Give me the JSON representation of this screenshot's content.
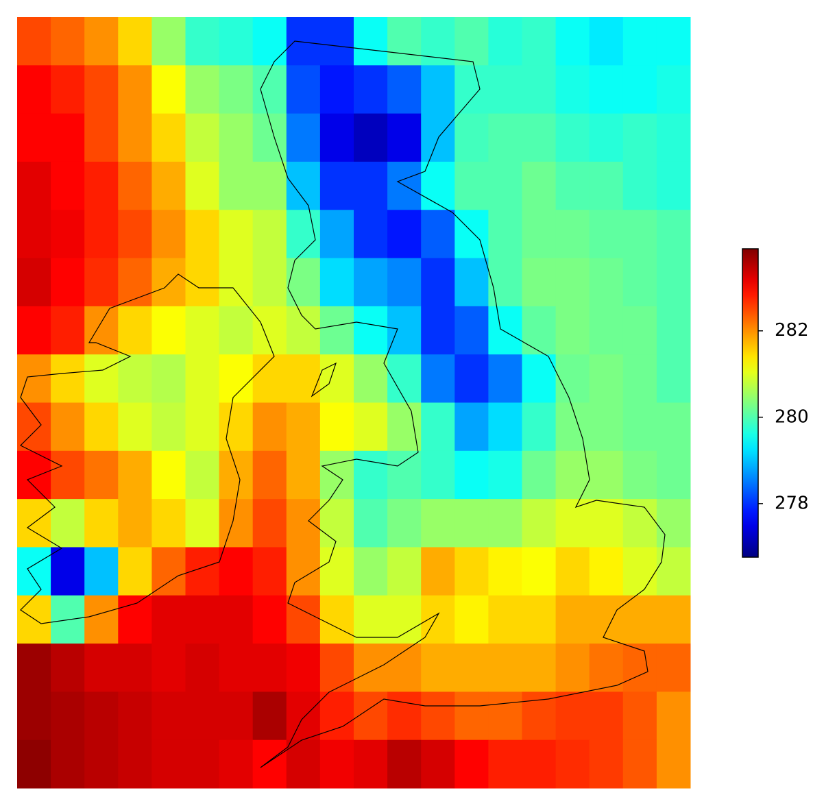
{
  "chart_data": {
    "type": "heatmap",
    "cmap": "jet",
    "clim": [
      276.76,
      283.9
    ],
    "cticks": [
      278,
      280,
      282
    ],
    "z": [
      [
        282.5,
        282.3,
        282,
        281.5,
        280.5,
        279.8,
        279.7,
        279.5,
        278,
        278,
        279.5,
        280,
        279.8,
        280,
        279.7,
        279.8,
        279.5,
        279.3,
        279.5,
        279.5
      ],
      [
        283,
        282.8,
        282.5,
        282,
        281.2,
        280.5,
        280.3,
        280,
        278.2,
        277.8,
        278,
        278.3,
        279,
        279.8,
        279.8,
        279.8,
        279.6,
        279.5,
        279.5,
        279.6
      ],
      [
        283,
        283,
        282.5,
        282,
        281.5,
        280.8,
        280.5,
        280.2,
        278.5,
        277.5,
        277.2,
        277.5,
        279,
        279.9,
        280,
        280,
        279.8,
        279.7,
        279.8,
        279.7
      ],
      [
        283.2,
        283,
        282.8,
        282.3,
        281.8,
        281,
        280.5,
        280.5,
        279,
        278,
        278,
        278.5,
        279.5,
        280,
        280,
        280.2,
        280,
        280,
        279.8,
        279.7
      ],
      [
        283.2,
        283.1,
        282.8,
        282.5,
        282,
        281.5,
        281,
        280.8,
        279.8,
        278.8,
        278,
        277.8,
        278.3,
        279.5,
        280,
        280.2,
        280.2,
        280.1,
        280.1,
        280
      ],
      [
        283.3,
        283,
        282.7,
        282.3,
        281.8,
        281.5,
        281,
        280.8,
        280.3,
        279.2,
        278.8,
        278.6,
        278,
        279,
        280,
        280.3,
        280.3,
        280.2,
        280.1,
        280
      ],
      [
        283,
        282.8,
        282,
        281.5,
        281.2,
        281,
        280.8,
        281,
        280.8,
        280.2,
        279.5,
        279,
        278,
        278.3,
        279.5,
        280.1,
        280.3,
        280.2,
        280.2,
        280
      ],
      [
        282,
        281.5,
        281,
        280.8,
        280.7,
        281,
        281.2,
        281.5,
        281.5,
        281,
        280.5,
        279.8,
        278.5,
        278,
        278.5,
        279.5,
        280.2,
        280.3,
        280.2,
        280
      ],
      [
        282.5,
        282,
        281.5,
        281,
        280.8,
        281,
        281.5,
        282,
        281.8,
        281.2,
        281,
        280.5,
        279.8,
        278.8,
        279.2,
        279.8,
        280.3,
        280.3,
        280.2,
        280.2
      ],
      [
        283,
        282.5,
        282.2,
        281.8,
        281.2,
        280.8,
        281.8,
        282.3,
        281.8,
        280.5,
        279.8,
        280,
        279.8,
        279.5,
        279.6,
        280.2,
        280.5,
        280.5,
        280.3,
        280.2
      ],
      [
        281.5,
        280.8,
        281.5,
        281.8,
        281.5,
        281,
        282,
        282.5,
        282,
        280.8,
        280,
        280.3,
        280.5,
        280.5,
        280.5,
        280.8,
        281,
        281,
        280.8,
        280.5
      ],
      [
        279.5,
        277.5,
        279,
        281.5,
        282.3,
        282.8,
        283,
        282.8,
        282,
        281,
        280.5,
        280.8,
        281.8,
        281.5,
        281.3,
        281.2,
        281.5,
        281.3,
        281,
        280.8
      ],
      [
        281.5,
        280,
        282,
        283,
        283.2,
        283.2,
        283.2,
        283,
        282.5,
        281.5,
        281,
        281,
        281.5,
        281.3,
        281.5,
        281.5,
        281.8,
        281.8,
        281.8,
        281.8
      ],
      [
        283.7,
        283.5,
        283.3,
        283.3,
        283.2,
        283.3,
        283.2,
        283.2,
        283.1,
        282.5,
        282,
        282,
        281.8,
        281.8,
        281.8,
        281.8,
        282,
        282.2,
        282.3,
        282.3
      ],
      [
        283.7,
        283.6,
        283.5,
        283.4,
        283.3,
        283.3,
        283.3,
        283.6,
        283.2,
        282.8,
        282.5,
        282.7,
        282.5,
        282.3,
        282.3,
        282.5,
        282.6,
        282.6,
        282.4,
        282
      ],
      [
        283.8,
        283.6,
        283.5,
        283.4,
        283.3,
        283.3,
        283.2,
        283,
        283.3,
        283.1,
        283.2,
        283.5,
        283.3,
        283,
        282.8,
        282.8,
        282.7,
        282.6,
        282.4,
        282
      ]
    ]
  }
}
